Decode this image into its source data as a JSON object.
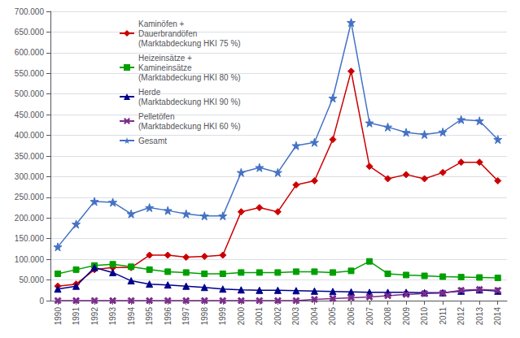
{
  "chart_data": {
    "type": "line",
    "x": [
      1990,
      1991,
      1992,
      1993,
      1994,
      1995,
      1996,
      1997,
      1998,
      1999,
      2000,
      2001,
      2002,
      2003,
      2004,
      2005,
      2006,
      2007,
      2008,
      2009,
      2010,
      2011,
      2012,
      2013,
      2014
    ],
    "xlim": [
      1989.6,
      2014.5
    ],
    "xticks": [
      1990,
      1991,
      1992,
      1993,
      1994,
      1995,
      1996,
      1997,
      1998,
      1999,
      2000,
      2001,
      2002,
      2003,
      2004,
      2005,
      2006,
      2007,
      2008,
      2009,
      2010,
      2011,
      2012,
      2013,
      2014
    ],
    "ylim": [
      0,
      700000
    ],
    "yticks": [
      0,
      {
        "value": 50000,
        "label": "50.000"
      },
      {
        "value": 100000,
        "label": "100.000"
      },
      {
        "value": 150000,
        "label": "150.000"
      },
      {
        "value": 200000,
        "label": "200.000"
      },
      {
        "value": 250000,
        "label": "250.000"
      },
      {
        "value": 300000,
        "label": "300.000"
      },
      {
        "value": 350000,
        "label": "350.000"
      },
      {
        "value": 400000,
        "label": "400.000"
      },
      {
        "value": 450000,
        "label": "450.000"
      },
      {
        "value": 500000,
        "label": "500.000"
      },
      {
        "value": 550000,
        "label": "550.000"
      },
      {
        "value": 600000,
        "label": "600.000"
      },
      {
        "value": 650000,
        "label": "650.000"
      },
      {
        "value": 700000,
        "label": "700.000"
      }
    ],
    "grid": true,
    "legend": "upper left",
    "series": [
      {
        "name": "Kaminöfen +\nDauerbrandöfen\n(Marktabdeckung HKI 75 %)",
        "color": "#CC0000",
        "marker": "diamond",
        "values": [
          35000,
          40000,
          75000,
          80000,
          80000,
          110000,
          110000,
          105000,
          107000,
          110000,
          215000,
          225000,
          215000,
          280000,
          290000,
          390000,
          555000,
          325000,
          295000,
          305000,
          295000,
          310000,
          335000,
          335000,
          290000
        ]
      },
      {
        "name": "Heizeinsätze +\nKamineinsätze\n(Marktabdeckung HKI 80 %)",
        "color": "#00A000",
        "marker": "square",
        "values": [
          65000,
          75000,
          85000,
          88000,
          82000,
          75000,
          70000,
          68000,
          65000,
          65000,
          68000,
          68000,
          68000,
          70000,
          70000,
          68000,
          72000,
          95000,
          65000,
          62000,
          60000,
          58000,
          57000,
          56000,
          55000
        ]
      },
      {
        "name": "Herde\n(Marktabdeckung HKI 90 %)",
        "color": "#00008B",
        "marker": "triangle",
        "values": [
          28000,
          35000,
          80000,
          68000,
          48000,
          40000,
          38000,
          35000,
          32000,
          28000,
          26000,
          25000,
          25000,
          24000,
          23000,
          22000,
          21000,
          20000,
          20000,
          20000,
          19000,
          19000,
          23000,
          26000,
          23000
        ]
      },
      {
        "name": "Pelletöfen\n(Marktabdeckung HKI 60 %)",
        "color": "#7B2D8B",
        "marker": "x",
        "values": [
          0,
          0,
          0,
          0,
          0,
          0,
          0,
          0,
          0,
          0,
          0,
          0,
          0,
          0,
          3000,
          5000,
          7000,
          9000,
          12000,
          15000,
          17000,
          18000,
          25000,
          27000,
          25000
        ]
      },
      {
        "name": "Gesamt",
        "color": "#4472C4",
        "marker": "star",
        "values": [
          130000,
          185000,
          240000,
          238000,
          210000,
          225000,
          218000,
          210000,
          205000,
          205000,
          310000,
          322000,
          310000,
          375000,
          383000,
          490000,
          673000,
          430000,
          420000,
          407000,
          402000,
          408000,
          438000,
          435000,
          390000
        ]
      }
    ]
  }
}
